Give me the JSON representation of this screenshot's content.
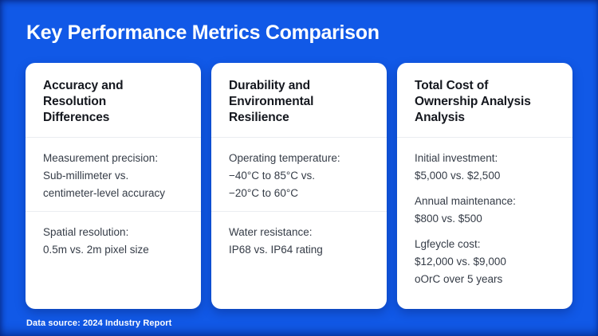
{
  "slide": {
    "title": "Key Performance Metrics Comparison",
    "footer": "Data source: 2024 Industry Report"
  },
  "cards": [
    {
      "title": "Accuracy and\nResolution\nDifferences",
      "items": [
        "Measurement precision:\nSub-millimeter vs.\ncentimeter-level accuracy",
        "Spatial resolution:\n0.5m vs. 2m pixel size"
      ]
    },
    {
      "title": "Durability and\nEnvironmental\nResilience",
      "items": [
        "Operating temperature:\n−40°C to 85°C vs.\n−20°C to 60°C",
        "Water resistance:\nIP68 vs. IP64 rating"
      ]
    },
    {
      "title": "Total Cost of\nOwnership Analysis\nAnalysis",
      "items": [
        "Initial investment:\n$5,000 vs. $2,500",
        "Annual maintenance:\n$800 vs. $500",
        "Lgfeycle cost:\n$12,000 vs. $9,000\noOrC over 5 years"
      ]
    }
  ],
  "colors": {
    "background": "#1159e7",
    "edge_shade": "#0a3fc0",
    "card_background": "#ffffff",
    "card_divider": "#eaedf1",
    "heading_text": "#14171e",
    "body_text": "#353c47",
    "title_text": "#ffffff"
  }
}
